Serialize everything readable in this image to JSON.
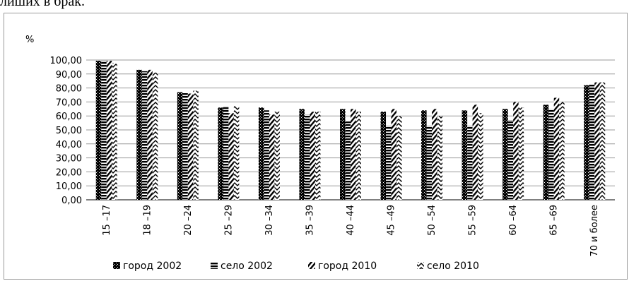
{
  "header_fragment": "лиших в брак.",
  "chart_data": {
    "type": "bar",
    "ylabel": "%",
    "ylim": [
      0,
      100
    ],
    "ytick_step": 10,
    "ytick_labels": [
      "0,00",
      "10,00",
      "20,00",
      "30,00",
      "40,00",
      "50,00",
      "60,00",
      "70,00",
      "80,00",
      "90,00",
      "100,00"
    ],
    "grid": true,
    "legend_position": "bottom",
    "categories": [
      "15 –17",
      "18 –19",
      "20 –24",
      "25 –29",
      "30 –34",
      "35 –39",
      "40 –44",
      "45 –49",
      "50 –54",
      "55 –59",
      "60 –64",
      "65 –69",
      "70 и более"
    ],
    "series": [
      {
        "name": "город 2002",
        "pattern": "cross-dense",
        "values": [
          99.5,
          93,
          77,
          66,
          66,
          65,
          65,
          63,
          64,
          64,
          65,
          68,
          82
        ]
      },
      {
        "name": "село 2002",
        "pattern": "horizontal",
        "values": [
          99.5,
          92,
          77,
          67,
          64,
          61,
          56,
          53,
          53,
          53,
          57,
          65,
          83
        ]
      },
      {
        "name": "город 2010",
        "pattern": "diagonal",
        "values": [
          99.5,
          93,
          76,
          62,
          61,
          63,
          65,
          65,
          65,
          68,
          70,
          73,
          84
        ]
      },
      {
        "name": "село 2010",
        "pattern": "zigzag",
        "values": [
          98,
          91,
          78,
          67,
          63,
          63,
          63,
          60,
          60,
          62,
          66,
          70,
          84
        ]
      }
    ]
  }
}
